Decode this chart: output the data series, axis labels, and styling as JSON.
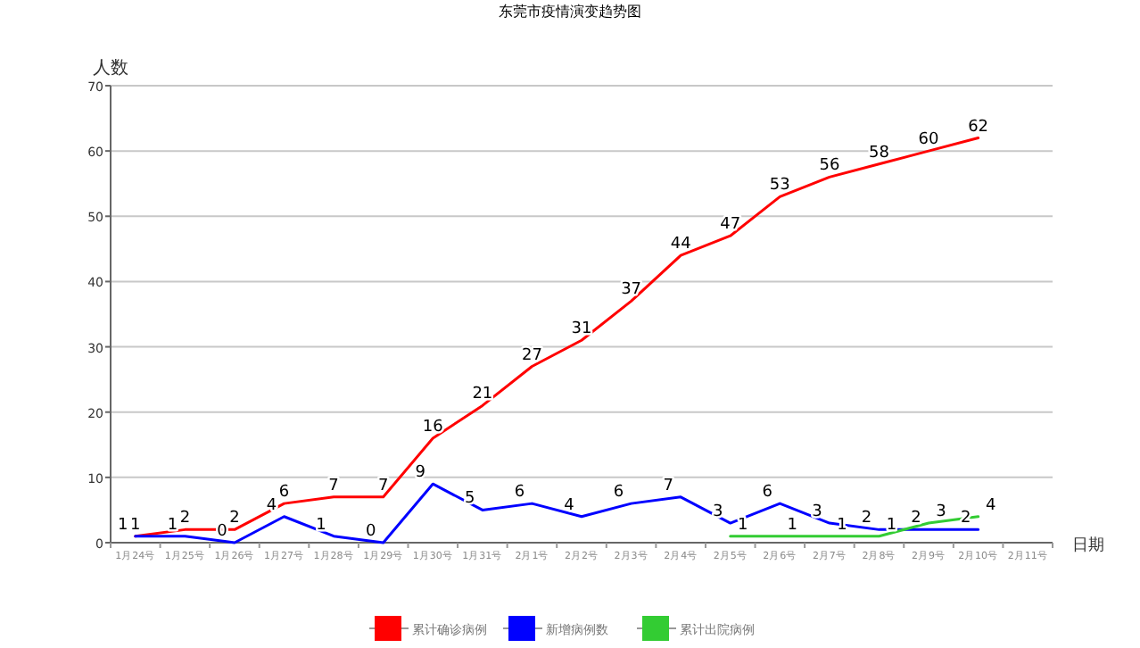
{
  "chart_data": {
    "type": "line",
    "title": "东莞市疫情演变趋势图",
    "xlabel": "日期",
    "ylabel": "人数",
    "categories": [
      "1月24号",
      "1月25号",
      "1月26号",
      "1月27号",
      "1月28号",
      "1月29号",
      "1月30号",
      "1月31号",
      "2月1号",
      "2月2号",
      "2月3号",
      "2月4号",
      "2月5号",
      "2月6号",
      "2月7号",
      "2月8号",
      "2月9号",
      "2月10号",
      "2月11号"
    ],
    "series": [
      {
        "name": "累计确诊病例",
        "color": "#ff0000",
        "values": [
          1,
          2,
          2,
          6,
          7,
          7,
          16,
          21,
          27,
          31,
          37,
          44,
          47,
          53,
          56,
          58,
          60,
          62,
          null
        ]
      },
      {
        "name": "新增病例数",
        "color": "#0000ff",
        "values": [
          1,
          1,
          0,
          4,
          1,
          0,
          9,
          5,
          6,
          4,
          6,
          7,
          3,
          6,
          3,
          2,
          2,
          2,
          null
        ]
      },
      {
        "name": "累计出院病例",
        "color": "#33cc33",
        "values": [
          null,
          null,
          null,
          null,
          null,
          null,
          null,
          null,
          null,
          null,
          null,
          null,
          1,
          1,
          1,
          1,
          3,
          4,
          null
        ]
      }
    ],
    "ylim": [
      0,
      70
    ],
    "yticks": [
      0,
      10,
      20,
      30,
      40,
      50,
      60,
      70
    ],
    "grid": "y",
    "legend": "bottom",
    "data_labels": true
  }
}
